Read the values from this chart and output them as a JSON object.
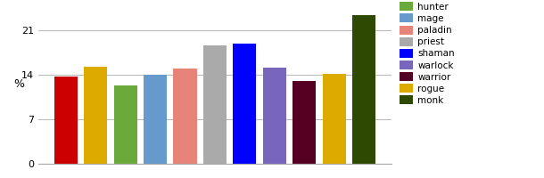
{
  "bar_values": [
    13.7,
    15.3,
    12.3,
    14.0,
    15.0,
    18.7,
    18.9,
    15.1,
    13.1,
    14.2,
    23.5
  ],
  "bar_colors": [
    "#cc0000",
    "#ddaa00",
    "#6aaa3a",
    "#6699cc",
    "#e8837a",
    "#aaaaaa",
    "#0000ff",
    "#7766bb",
    "#550022",
    "#ddaa00",
    "#2d4a00"
  ],
  "legend_labels": [
    "hunter",
    "mage",
    "paladin",
    "priest",
    "shaman",
    "warlock",
    "warrior",
    "rogue",
    "monk"
  ],
  "legend_colors": [
    "#6aaa3a",
    "#6699cc",
    "#e8837a",
    "#aaaaaa",
    "#0000ff",
    "#7766bb",
    "#550022",
    "#ddaa00",
    "#2d4a00"
  ],
  "ylabel": "%",
  "yticks": [
    0,
    7,
    14,
    21
  ],
  "ylim": [
    0,
    25
  ],
  "background_color": "#ffffff",
  "grid_color": "#bbbbbb"
}
